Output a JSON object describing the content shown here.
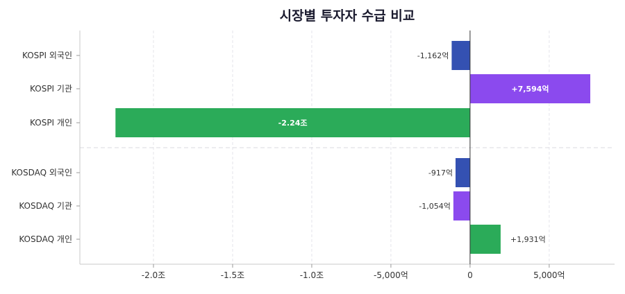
{
  "chart_data": {
    "type": "bar",
    "orientation": "horizontal",
    "title": "시장별 투자자 수급 비교",
    "value_unit": "억",
    "xlim": [
      -24650,
      9130
    ],
    "grid": {
      "x": true,
      "y": false
    },
    "x_ticks": [
      {
        "value": -20000,
        "label": "-2.0조"
      },
      {
        "value": -15000,
        "label": "-1.5조"
      },
      {
        "value": -10000,
        "label": "-1.0조"
      },
      {
        "value": -5000,
        "label": "-5,000억"
      },
      {
        "value": 0,
        "label": "0"
      },
      {
        "value": 5000,
        "label": "5,000억"
      }
    ],
    "groups": [
      {
        "name": "KOSPI",
        "bars": [
          {
            "category": "KOSPI  외국인",
            "value": -1162,
            "label": "-1,162억",
            "color": "#3451b2",
            "label_pos": "outside"
          },
          {
            "category": "KOSPI  기관",
            "value": 7594,
            "label": "+7,594억",
            "color": "#8b4aee",
            "label_pos": "inside"
          },
          {
            "category": "KOSPI  개인",
            "value": -22400,
            "label": "-2.24조",
            "color": "#2bab59",
            "label_pos": "inside"
          }
        ]
      },
      {
        "name": "KOSDAQ",
        "bars": [
          {
            "category": "KOSDAQ  외국인",
            "value": -917,
            "label": "-917억",
            "color": "#3451b2",
            "label_pos": "outside"
          },
          {
            "category": "KOSDAQ  기관",
            "value": -1054,
            "label": "-1,054억",
            "color": "#8b4aee",
            "label_pos": "outside"
          },
          {
            "category": "KOSDAQ  개인",
            "value": 1931,
            "label": "+1,931억",
            "color": "#2bab59",
            "label_pos": "outside"
          }
        ]
      }
    ]
  }
}
